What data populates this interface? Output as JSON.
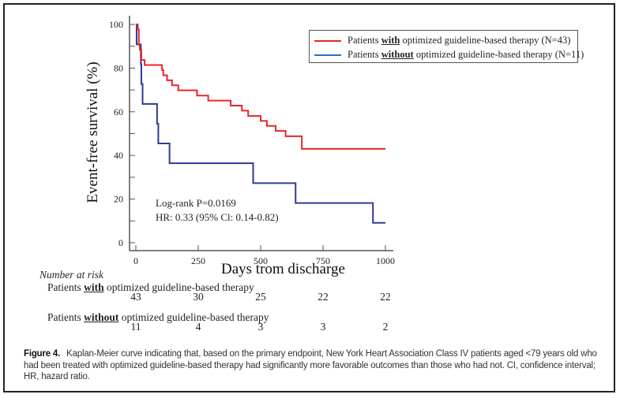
{
  "figure": {
    "caption_label": "Figure 4.",
    "caption_text": "Kaplan-Meier curve indicating that, based on the primary endpoint, New York Heart Association Class IV patients aged <79 years old who had been treated with optimized guideline-based therapy had significantly more favorable outcomes than those who had not. CI, confidence interval; HR, hazard ratio."
  },
  "chart_data": {
    "type": "line",
    "subtype": "kaplan-meier-step",
    "title": "",
    "xlabel": "Days trom discharge",
    "ylabel": "Event-free survival (%)",
    "xlim": [
      0,
      1000
    ],
    "ylim": [
      0,
      100
    ],
    "xticks": [
      0,
      250,
      500,
      750,
      1000
    ],
    "yticks": [
      0,
      20,
      40,
      60,
      80,
      100
    ],
    "grid": false,
    "legend_position": "top-right",
    "series": [
      {
        "name": "Patients with optimized guideline-based therapy (N=43)",
        "legend_prefix": "Patients ",
        "legend_bold": "with",
        "legend_suffix": " optimized guideline-based therapy (N=43)",
        "color": "#e8262a",
        "steps": [
          [
            0,
            100
          ],
          [
            8,
            97.7
          ],
          [
            12,
            90.7
          ],
          [
            16,
            88.4
          ],
          [
            22,
            83.7
          ],
          [
            35,
            81.4
          ],
          [
            105,
            79.1
          ],
          [
            110,
            76.7
          ],
          [
            125,
            74.4
          ],
          [
            145,
            72.1
          ],
          [
            170,
            69.8
          ],
          [
            245,
            67.4
          ],
          [
            290,
            65.1
          ],
          [
            380,
            62.8
          ],
          [
            425,
            60.5
          ],
          [
            450,
            58.1
          ],
          [
            500,
            55.8
          ],
          [
            525,
            53.5
          ],
          [
            560,
            51.2
          ],
          [
            600,
            48.8
          ],
          [
            665,
            43.0
          ]
        ],
        "end_x": 1000
      },
      {
        "name": "Patients without optimized guideline-based therapy (N=11)",
        "legend_prefix": "Patients ",
        "legend_bold": "without",
        "legend_suffix": " optimized guideline-based therapy (N=11)",
        "color": "#2f3a94",
        "legend_color": "#2a6fbf",
        "steps": [
          [
            0,
            100
          ],
          [
            3,
            90.9
          ],
          [
            20,
            81.8
          ],
          [
            22,
            72.7
          ],
          [
            27,
            63.6
          ],
          [
            85,
            54.5
          ],
          [
            90,
            45.5
          ],
          [
            135,
            36.4
          ],
          [
            470,
            27.3
          ],
          [
            640,
            18.2
          ],
          [
            950,
            9.1
          ]
        ],
        "end_x": 1000
      }
    ],
    "annotations": [
      "Log-rank P=0.0169",
      "HR: 0.33 (95% Cl: 0.14-0.82)"
    ]
  },
  "risk_table": {
    "title": "Number at risk",
    "rows": [
      {
        "prefix": "Patients ",
        "bold": "with",
        "suffix": " optimized guideline-based therapy",
        "values": [
          "43",
          "30",
          "25",
          "22",
          "22"
        ]
      },
      {
        "prefix": "Patients ",
        "bold": "without",
        "suffix": " optimized guideline-based therapy",
        "values": [
          "11",
          "4",
          "3",
          "3",
          "2"
        ]
      }
    ]
  }
}
